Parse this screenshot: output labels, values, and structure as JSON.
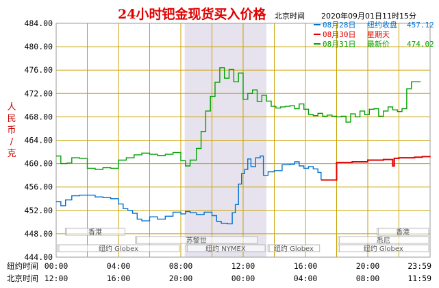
{
  "header": {
    "title": "24小时钯金现货买入价格",
    "zone": "北京时间",
    "datetime": "2020年09月01日11时15分"
  },
  "legend": [
    {
      "date": "08月28日",
      "label": "纽约收盘",
      "value": "457.12",
      "color": "#0070d0"
    },
    {
      "date": "08月30日",
      "label": "星期天",
      "value": "",
      "color": "#e00000"
    },
    {
      "date": "08月31日",
      "label": "最新价",
      "value": "474.02",
      "color": "#00a000"
    }
  ],
  "colors": {
    "grid": "#c8a000",
    "highlight": "#e6e3ee",
    "border": "#999999"
  },
  "row_labels": {
    "ny": "纽约时间",
    "bj": "北京时间"
  },
  "x_ticks_ny": [
    "00:00",
    "04:00",
    "08:00",
    "12:00",
    "16:00",
    "20:00",
    "23:59"
  ],
  "x_ticks_bj": [
    "12:00",
    "16:00",
    "20:00",
    "00:00",
    "04:00",
    "08:00",
    "11:59"
  ],
  "markets": [
    {
      "name": "香港",
      "start": 0.5,
      "end": 4.5,
      "row": 0
    },
    {
      "name": "苏黎世",
      "start": 5,
      "end": 13,
      "row": 1
    },
    {
      "name": "纽约 Globex",
      "start": 0,
      "end": 8,
      "row": 2
    },
    {
      "name": "纽约 NYMEX",
      "start": 8.25,
      "end": 13.5,
      "row": 2
    },
    {
      "name": "纽约 Globex",
      "start": 13.5,
      "end": 17,
      "row": 2
    },
    {
      "name": "香港",
      "start": 20.5,
      "end": 24,
      "row": 0
    },
    {
      "name": "悉尼",
      "start": 18,
      "end": 24,
      "row": 1
    },
    {
      "name": "纽约 Globex",
      "start": 18,
      "end": 24,
      "row": 2
    }
  ],
  "chart_data": {
    "type": "line",
    "title": "24小时钯金现货买入价格",
    "xlabel": "纽约时间",
    "ylabel": "人民币/克",
    "xlim": [
      0,
      24
    ],
    "ylim": [
      444,
      484
    ],
    "yticks": [
      "484.00",
      "480.00",
      "476.00",
      "472.00",
      "468.00",
      "464.00",
      "460.00",
      "456.00",
      "452.00",
      "448.00",
      "444.00"
    ],
    "highlight_range": [
      8.25,
      13.5
    ],
    "grid": true,
    "series": [
      {
        "name": "08月28日",
        "color": "#0070d0",
        "x": [
          0,
          0.3,
          0.6,
          1,
          1.5,
          2,
          2.5,
          3,
          3.5,
          4,
          4.3,
          4.6,
          4.9,
          5.2,
          5.5,
          6,
          6.5,
          7,
          7.5,
          8,
          8.3,
          8.6,
          9,
          9.5,
          10,
          10.3,
          10.6,
          11,
          11.3,
          11.5,
          11.7,
          11.9,
          12.1,
          12.3,
          12.5,
          12.8,
          13.1,
          13.3,
          13.6,
          14,
          14.5,
          15,
          15.3,
          15.6,
          15.9,
          16.2,
          16.5,
          16.8,
          17
        ],
        "y": [
          453.5,
          452.8,
          453.8,
          454.5,
          454.6,
          454.6,
          454.3,
          454.2,
          454.0,
          453.1,
          452.3,
          452.0,
          451.5,
          450.5,
          450.2,
          450.9,
          450.5,
          451.0,
          451.7,
          451.4,
          451.8,
          451.6,
          451.3,
          451.7,
          451.1,
          450.1,
          449.8,
          449.7,
          451.6,
          453.0,
          456.5,
          458.3,
          459.0,
          460.8,
          459.5,
          461.0,
          461.3,
          458.0,
          458.6,
          458.8,
          459.8,
          459.9,
          460.3,
          459.6,
          459.2,
          459.5,
          459.1,
          458.5,
          457.2
        ]
      },
      {
        "name": "08月30日",
        "color": "#e00000",
        "x": [
          17,
          17.8,
          18,
          19,
          20,
          21,
          21.5,
          21.6,
          21.7,
          22,
          22.5,
          23,
          23.5,
          23.99
        ],
        "y": [
          457.2,
          457.2,
          460.2,
          460.3,
          460.6,
          460.7,
          460.7,
          459.6,
          460.9,
          461.0,
          461.0,
          461.1,
          461.2,
          461.3
        ]
      },
      {
        "name": "08月31日",
        "color": "#00a000",
        "x": [
          0,
          0.3,
          0.7,
          1,
          1.5,
          2,
          2.5,
          3,
          3.5,
          4,
          4.5,
          5,
          5.5,
          6,
          6.5,
          7,
          7.5,
          8,
          8.3,
          8.6,
          9,
          9.3,
          9.6,
          9.9,
          10.2,
          10.5,
          10.8,
          11.1,
          11.4,
          11.7,
          12,
          12.3,
          12.6,
          12.9,
          13.2,
          13.5,
          13.8,
          14.1,
          14.4,
          14.7,
          15,
          15.3,
          15.6,
          15.9,
          16.2,
          16.5,
          16.8,
          17.1,
          17.4,
          17.7,
          18,
          18.3,
          18.6,
          18.9,
          19.2,
          19.5,
          19.8,
          20.1,
          20.4,
          20.7,
          21,
          21.3,
          21.6,
          21.9,
          22.2,
          22.5,
          22.8,
          23.1,
          23.4
        ],
        "y": [
          461.3,
          460.0,
          460.1,
          461.0,
          460.9,
          459.2,
          459.0,
          459.3,
          459.2,
          460.6,
          461.0,
          461.5,
          461.8,
          461.6,
          461.4,
          461.6,
          461.9,
          460.5,
          459.6,
          460.6,
          462.6,
          465.5,
          469.0,
          471.5,
          473.9,
          476.4,
          474.6,
          476.1,
          474.0,
          475.5,
          471.0,
          472.0,
          472.6,
          470.6,
          471.7,
          470.7,
          469.8,
          469.5,
          469.7,
          469.8,
          469.9,
          469.4,
          470.2,
          469.3,
          468.4,
          468.2,
          468.6,
          468.1,
          468.3,
          468.1,
          468.0,
          468.1,
          467.1,
          468.5,
          468.0,
          469.0,
          468.4,
          469.3,
          469.4,
          468.1,
          469.0,
          469.7,
          469.2,
          468.9,
          469.4,
          472.8,
          474.0,
          474.0,
          474.0
        ]
      }
    ]
  }
}
